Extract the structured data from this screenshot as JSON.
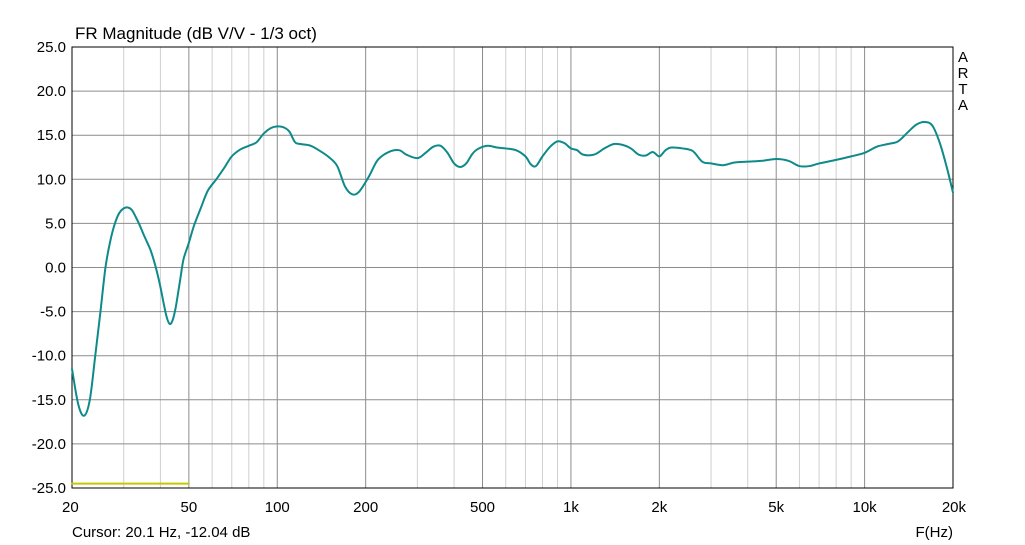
{
  "chart_data": {
    "type": "line",
    "title": "FR Magnitude (dB V/V - 1/3 oct)",
    "xlabel": "F(Hz)",
    "ylabel": "",
    "x_scale": "log",
    "xlim": [
      20,
      20000
    ],
    "ylim": [
      -25,
      25
    ],
    "grid": true,
    "x_ticks": [
      {
        "value": 20,
        "label": "20"
      },
      {
        "value": 50,
        "label": "50"
      },
      {
        "value": 100,
        "label": "100"
      },
      {
        "value": 200,
        "label": "200"
      },
      {
        "value": 500,
        "label": "500"
      },
      {
        "value": 1000,
        "label": "1k"
      },
      {
        "value": 2000,
        "label": "2k"
      },
      {
        "value": 5000,
        "label": "5k"
      },
      {
        "value": 10000,
        "label": "10k"
      },
      {
        "value": 20000,
        "label": "20k"
      }
    ],
    "y_ticks": [
      {
        "value": 25,
        "label": "25.0"
      },
      {
        "value": 20,
        "label": "20.0"
      },
      {
        "value": 15,
        "label": "15.0"
      },
      {
        "value": 10,
        "label": "10.0"
      },
      {
        "value": 5,
        "label": "5.0"
      },
      {
        "value": 0,
        "label": "0.0"
      },
      {
        "value": -5,
        "label": "-5.0"
      },
      {
        "value": -10,
        "label": "-10.0"
      },
      {
        "value": -15,
        "label": "-15.0"
      },
      {
        "value": -20,
        "label": "-20.0"
      },
      {
        "value": -25,
        "label": "-25.0"
      }
    ],
    "series": [
      {
        "color": "#0e8a8a",
        "points": [
          [
            20,
            -11.5
          ],
          [
            21,
            -15.5
          ],
          [
            22,
            -16.8
          ],
          [
            23,
            -15
          ],
          [
            24,
            -10
          ],
          [
            25,
            -5
          ],
          [
            26,
            0
          ],
          [
            27,
            3
          ],
          [
            28,
            5
          ],
          [
            29,
            6.2
          ],
          [
            30,
            6.7
          ],
          [
            31,
            6.8
          ],
          [
            32,
            6.5
          ],
          [
            33,
            5.7
          ],
          [
            34,
            4.8
          ],
          [
            35,
            3.8
          ],
          [
            36,
            2.9
          ],
          [
            37,
            2
          ],
          [
            38,
            0.8
          ],
          [
            39,
            -0.6
          ],
          [
            40,
            -2.2
          ],
          [
            41,
            -4
          ],
          [
            42,
            -5.6
          ],
          [
            43,
            -6.4
          ],
          [
            44,
            -6
          ],
          [
            45,
            -4.7
          ],
          [
            46,
            -2.8
          ],
          [
            47,
            -0.8
          ],
          [
            48,
            1
          ],
          [
            50,
            2.8
          ],
          [
            52,
            4.7
          ],
          [
            55,
            6.8
          ],
          [
            58,
            8.7
          ],
          [
            62,
            10
          ],
          [
            66,
            11.3
          ],
          [
            70,
            12.6
          ],
          [
            75,
            13.4
          ],
          [
            80,
            13.8
          ],
          [
            85,
            14.2
          ],
          [
            90,
            15.2
          ],
          [
            95,
            15.8
          ],
          [
            100,
            16
          ],
          [
            105,
            15.9
          ],
          [
            110,
            15.4
          ],
          [
            115,
            14.2
          ],
          [
            120,
            14
          ],
          [
            130,
            13.8
          ],
          [
            140,
            13.2
          ],
          [
            150,
            12.5
          ],
          [
            160,
            11.5
          ],
          [
            170,
            9.2
          ],
          [
            180,
            8.3
          ],
          [
            190,
            8.6
          ],
          [
            205,
            10.3
          ],
          [
            220,
            12.2
          ],
          [
            240,
            13.1
          ],
          [
            260,
            13.3
          ],
          [
            275,
            12.8
          ],
          [
            300,
            12.4
          ],
          [
            320,
            13
          ],
          [
            340,
            13.7
          ],
          [
            360,
            13.8
          ],
          [
            380,
            13
          ],
          [
            400,
            11.8
          ],
          [
            420,
            11.4
          ],
          [
            440,
            11.8
          ],
          [
            460,
            12.8
          ],
          [
            480,
            13.4
          ],
          [
            520,
            13.8
          ],
          [
            560,
            13.6
          ],
          [
            600,
            13.5
          ],
          [
            650,
            13.3
          ],
          [
            700,
            12.6
          ],
          [
            730,
            11.7
          ],
          [
            760,
            11.5
          ],
          [
            800,
            12.6
          ],
          [
            850,
            13.7
          ],
          [
            900,
            14.3
          ],
          [
            950,
            14.1
          ],
          [
            1000,
            13.5
          ],
          [
            1050,
            13.3
          ],
          [
            1100,
            12.8
          ],
          [
            1200,
            12.8
          ],
          [
            1300,
            13.5
          ],
          [
            1400,
            14
          ],
          [
            1500,
            13.9
          ],
          [
            1600,
            13.5
          ],
          [
            1700,
            12.8
          ],
          [
            1800,
            12.7
          ],
          [
            1900,
            13.1
          ],
          [
            2000,
            12.6
          ],
          [
            2100,
            13.3
          ],
          [
            2200,
            13.6
          ],
          [
            2400,
            13.5
          ],
          [
            2600,
            13.2
          ],
          [
            2800,
            12
          ],
          [
            3000,
            11.8
          ],
          [
            3300,
            11.6
          ],
          [
            3600,
            11.9
          ],
          [
            4000,
            12
          ],
          [
            4500,
            12.1
          ],
          [
            5000,
            12.3
          ],
          [
            5500,
            12.1
          ],
          [
            6000,
            11.5
          ],
          [
            6500,
            11.5
          ],
          [
            7000,
            11.8
          ],
          [
            8000,
            12.2
          ],
          [
            9000,
            12.6
          ],
          [
            10000,
            13
          ],
          [
            11000,
            13.7
          ],
          [
            12000,
            14
          ],
          [
            13000,
            14.3
          ],
          [
            14000,
            15.3
          ],
          [
            15000,
            16.2
          ],
          [
            16000,
            16.5
          ],
          [
            17000,
            16.1
          ],
          [
            18000,
            14.2
          ],
          [
            19000,
            11.5
          ],
          [
            20000,
            8.5
          ]
        ]
      },
      {
        "color": "#c8c800",
        "points": [
          [
            20,
            -24.5
          ],
          [
            50,
            -24.5
          ]
        ]
      }
    ],
    "side_label": [
      "A",
      "R",
      "T",
      "A"
    ],
    "cursor_text": "Cursor: 20.1 Hz, -12.04 dB"
  }
}
